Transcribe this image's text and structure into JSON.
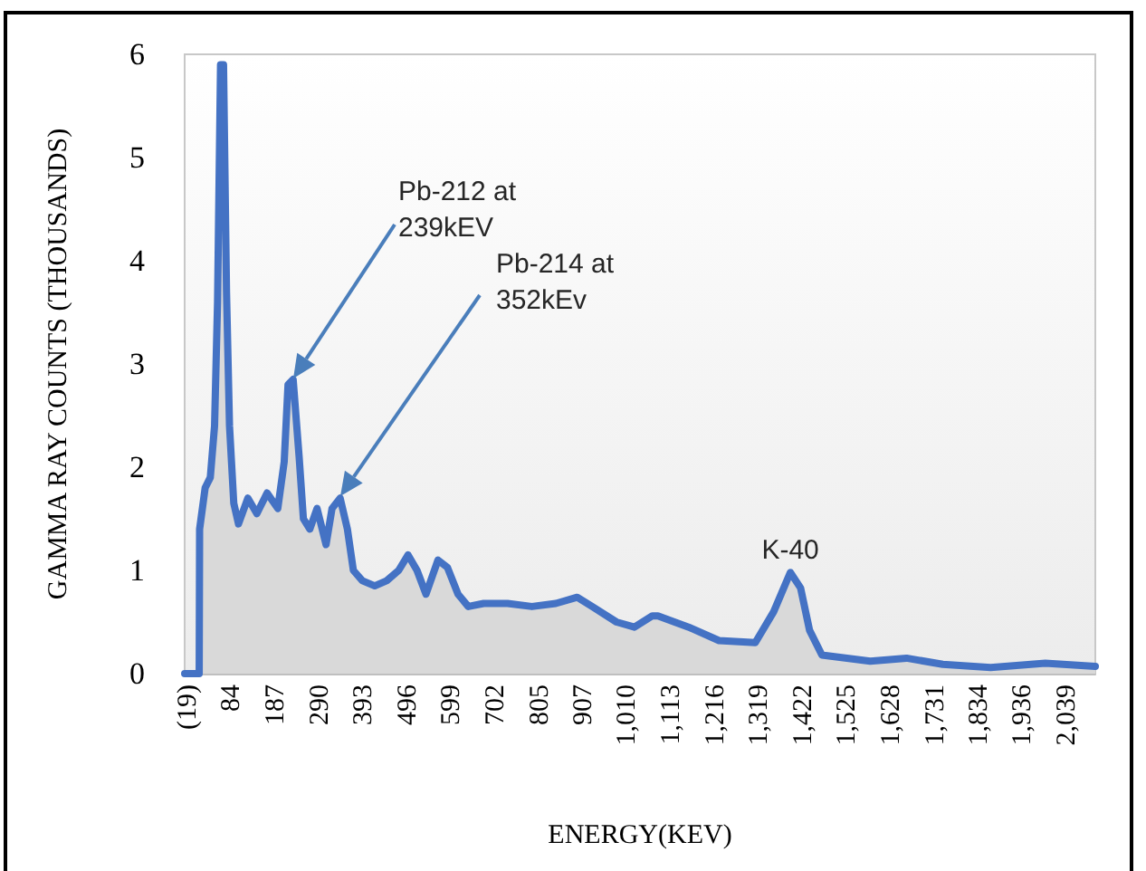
{
  "chart_data": {
    "type": "area",
    "xlabel": "ENERGY(KEV)",
    "ylabel": "GAMMA RAY COUNTS (THOUSANDS)",
    "xlim": [
      -27,
      2105
    ],
    "ylim": [
      0,
      6
    ],
    "yticks": [
      0,
      1,
      2,
      3,
      4,
      5,
      6
    ],
    "xticks": [
      {
        "value": -19,
        "label": "(19)"
      },
      {
        "value": 84,
        "label": "84"
      },
      {
        "value": 187,
        "label": "187"
      },
      {
        "value": 290,
        "label": "290"
      },
      {
        "value": 393,
        "label": "393"
      },
      {
        "value": 496,
        "label": "496"
      },
      {
        "value": 599,
        "label": "599"
      },
      {
        "value": 702,
        "label": "702"
      },
      {
        "value": 805,
        "label": "805"
      },
      {
        "value": 907,
        "label": "907"
      },
      {
        "value": 1010,
        "label": "1,010"
      },
      {
        "value": 1113,
        "label": "1,113"
      },
      {
        "value": 1216,
        "label": "1,216"
      },
      {
        "value": 1319,
        "label": "1,319"
      },
      {
        "value": 1422,
        "label": "1,422"
      },
      {
        "value": 1525,
        "label": "1,525"
      },
      {
        "value": 1628,
        "label": "1,628"
      },
      {
        "value": 1731,
        "label": "1,731"
      },
      {
        "value": 1834,
        "label": "1,834"
      },
      {
        "value": 1936,
        "label": "1,936"
      },
      {
        "value": 2039,
        "label": "2,039"
      }
    ],
    "grid": false,
    "marker": "none",
    "x": [
      -27,
      7,
      8,
      21,
      33,
      43,
      50,
      57,
      64,
      71,
      78,
      88,
      99,
      121,
      142,
      166,
      191,
      206,
      215,
      227,
      241,
      251,
      266,
      283,
      304,
      318,
      337,
      354,
      368,
      389,
      418,
      446,
      474,
      496,
      517,
      538,
      566,
      588,
      613,
      637,
      673,
      729,
      786,
      842,
      892,
      927,
      984,
      1026,
      1068,
      1081,
      1153,
      1224,
      1309,
      1352,
      1391,
      1415,
      1436,
      1465,
      1578,
      1663,
      1748,
      1860,
      1988,
      2105
    ],
    "series": [
      {
        "color": "#4472c4",
        "values": [
          0,
          0,
          1.4,
          1.8,
          1.9,
          2.4,
          3.6,
          5.9,
          5.9,
          3.7,
          2.4,
          1.65,
          1.45,
          1.7,
          1.55,
          1.75,
          1.6,
          2.05,
          2.8,
          2.85,
          2.1,
          1.5,
          1.4,
          1.6,
          1.25,
          1.6,
          1.7,
          1.4,
          1.0,
          0.9,
          0.85,
          0.9,
          1.0,
          1.15,
          1.0,
          0.77,
          1.1,
          1.03,
          0.77,
          0.65,
          0.68,
          0.68,
          0.65,
          0.68,
          0.74,
          0.65,
          0.5,
          0.45,
          0.56,
          0.56,
          0.45,
          0.32,
          0.3,
          0.6,
          0.98,
          0.83,
          0.42,
          0.18,
          0.12,
          0.15,
          0.09,
          0.06,
          0.1,
          0.07
        ]
      }
    ],
    "annotations": [
      "Pb-212 at\n239kEV",
      "Pb-214 at\n352kEv",
      {
        "text": "K-40",
        "x": 1391,
        "y": 0.98
      }
    ]
  }
}
